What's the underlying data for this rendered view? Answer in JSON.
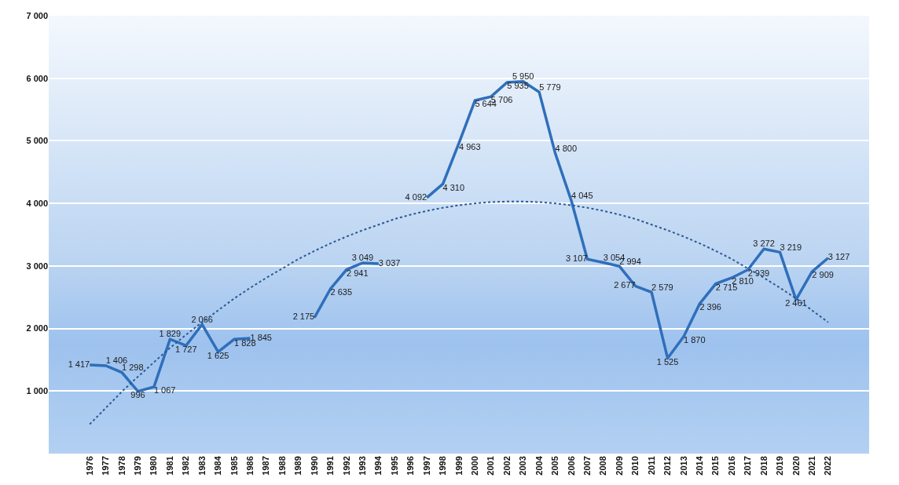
{
  "chart_data": {
    "type": "line",
    "categories": [
      "1976",
      "1977",
      "1978",
      "1979",
      "1980",
      "1981",
      "1982",
      "1983",
      "1984",
      "1985",
      "1986",
      "1987",
      "1988",
      "1989",
      "1990",
      "1991",
      "1992",
      "1993",
      "1994",
      "1995",
      "1996",
      "1997",
      "1998",
      "1999",
      "2000",
      "2001",
      "2002",
      "2003",
      "2004",
      "2005",
      "2006",
      "2007",
      "2008",
      "2009",
      "2010",
      "2011",
      "2012",
      "2013",
      "2014",
      "2015",
      "2016",
      "2017",
      "2018",
      "2019",
      "2020",
      "2021",
      "2022"
    ],
    "series": [
      {
        "color": "#2f6fba",
        "values": [
          1417,
          1406,
          1298,
          996,
          1067,
          1829,
          1727,
          2066,
          1625,
          1828,
          1845,
          null,
          null,
          null,
          2175,
          2635,
          2941,
          3049,
          3037,
          null,
          null,
          4092,
          4310,
          4963,
          5644,
          5706,
          5935,
          5950,
          5779,
          4800,
          4045,
          3107,
          3054,
          2994,
          2677,
          2579,
          1525,
          1870,
          2396,
          2715,
          2810,
          2939,
          3272,
          3219,
          2461,
          2909,
          3127
        ],
        "value_labels": [
          "1 417",
          "1 406",
          "1 298",
          "996",
          "1 067",
          "1 829",
          "1 727",
          "2 066",
          "1 625",
          "1 828",
          "1 845",
          null,
          null,
          null,
          "2 175",
          "2 635",
          "2 941",
          "3 049",
          "3 037",
          null,
          null,
          "4 092",
          "4 310",
          "4 963",
          "5 644",
          "5 706",
          "5 935",
          "5 950",
          "5 779",
          "4 800",
          "4 045",
          "3 107",
          "3 054",
          "2 994",
          "2 677",
          "2 579",
          "1 525",
          "1 870",
          "2 396",
          "2 715",
          "2 810",
          "2 939",
          "3 272",
          "3 219",
          "2 461",
          "2 909",
          "3 127"
        ]
      },
      {
        "type": "line",
        "line_style": "dotted",
        "color": "#2b5a94",
        "values": [
          470,
          730,
          990,
          1230,
          1460,
          1690,
          1900,
          2100,
          2290,
          2480,
          2650,
          2810,
          2960,
          3110,
          3240,
          3360,
          3470,
          3570,
          3660,
          3750,
          3820,
          3880,
          3930,
          3970,
          4000,
          4020,
          4030,
          4030,
          4020,
          4000,
          3970,
          3930,
          3880,
          3820,
          3750,
          3660,
          3570,
          3470,
          3360,
          3240,
          3110,
          2960,
          2810,
          2650,
          2480,
          2290,
          2100
        ]
      }
    ],
    "ylim": [
      0,
      7000
    ],
    "yticks": [
      1000,
      2000,
      3000,
      4000,
      5000,
      6000,
      7000
    ],
    "grid": "y",
    "marker": "none",
    "line_style": "solid"
  }
}
